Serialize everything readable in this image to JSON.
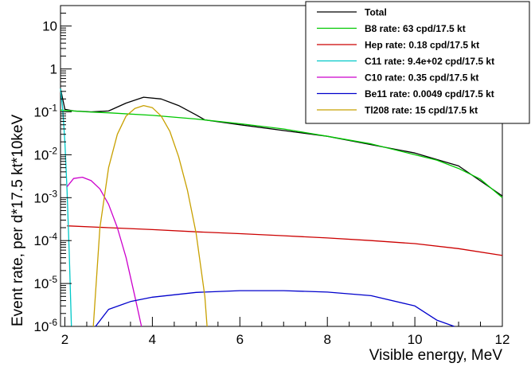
{
  "chart_data": {
    "type": "line",
    "title": "",
    "xlabel": "Visible energy, MeV",
    "ylabel": "Event rate, per d*17.5 kt*10keV",
    "xlim": [
      1.9,
      12
    ],
    "ylim": [
      1e-06,
      30
    ],
    "yscale": "log",
    "grid": false,
    "legend_position": "top-right",
    "x_ticks": [
      2,
      4,
      6,
      8,
      10,
      12
    ],
    "x_tick_labels": [
      "2",
      "4",
      "6",
      "8",
      "10",
      "12"
    ],
    "y_ticks": [
      1e-06,
      1e-05,
      0.0001,
      0.001,
      0.01,
      0.1,
      1,
      10
    ],
    "y_tick_labels": [
      {
        "base": "10",
        "exp": "-6"
      },
      {
        "base": "10",
        "exp": "-5"
      },
      {
        "base": "10",
        "exp": "-4"
      },
      {
        "base": "10",
        "exp": "-3"
      },
      {
        "base": "10",
        "exp": "-2"
      },
      {
        "base": "10",
        "exp": "-1"
      },
      {
        "base": "1",
        "exp": ""
      },
      {
        "base": "10",
        "exp": ""
      }
    ],
    "series": [
      {
        "name": "Total",
        "color": "#000000",
        "x": [
          1.9,
          2.0,
          2.2,
          2.6,
          3.0,
          3.4,
          3.8,
          4.2,
          4.6,
          5.0,
          5.2,
          6,
          8,
          10,
          11,
          12
        ],
        "y": [
          0.35,
          0.115,
          0.105,
          0.1,
          0.105,
          0.16,
          0.22,
          0.2,
          0.14,
          0.085,
          0.065,
          0.05,
          0.027,
          0.011,
          0.0055,
          0.0011
        ]
      },
      {
        "name": "B8 rate: 63 cpd/17.5 kt",
        "color": "#00c800",
        "x": [
          1.9,
          2.5,
          3,
          4,
          5,
          6,
          7,
          8,
          9,
          10,
          10.5,
          11,
          11.5,
          12
        ],
        "y": [
          0.11,
          0.1,
          0.095,
          0.083,
          0.068,
          0.053,
          0.04,
          0.027,
          0.018,
          0.01,
          0.0075,
          0.0048,
          0.0027,
          0.001
        ]
      },
      {
        "name": "Hep rate: 0.18 cpd/17.5 kt",
        "color": "#cc0000",
        "x": [
          2.05,
          3,
          4,
          5,
          6,
          7,
          8,
          9,
          10,
          11,
          12
        ],
        "y": [
          0.00022,
          0.0002,
          0.00018,
          0.00016,
          0.000145,
          0.00013,
          0.000115,
          0.0001,
          8.5e-05,
          6.5e-05,
          4.5e-05
        ]
      },
      {
        "name": "C11 rate: 9.4e+02 cpd/17.5 kt",
        "color": "#00c8c8",
        "x": [
          1.9,
          1.95,
          2.0,
          2.05,
          2.1,
          2.15
        ],
        "y": [
          0.35,
          0.12,
          0.02,
          0.0015,
          5e-05,
          1e-06
        ]
      },
      {
        "name": "C10 rate: 0.35 cpd/17.5 kt",
        "color": "#cc00cc",
        "x": [
          2.05,
          2.2,
          2.4,
          2.6,
          2.8,
          3.0,
          3.2,
          3.4,
          3.6,
          3.75
        ],
        "y": [
          0.0018,
          0.0028,
          0.003,
          0.0025,
          0.0016,
          0.0007,
          0.0002,
          4e-05,
          5e-06,
          1e-06
        ]
      },
      {
        "name": "Be11 rate: 0.0049 cpd/17.5 kt",
        "color": "#0000cc",
        "x": [
          2.7,
          3,
          3.5,
          4,
          5,
          6,
          7,
          8,
          9,
          10,
          10.5,
          10.9
        ],
        "y": [
          1e-06,
          2.5e-06,
          3.8e-06,
          4.8e-06,
          6.2e-06,
          6.8e-06,
          6.8e-06,
          6.3e-06,
          5.2e-06,
          3e-06,
          1.4e-06,
          1e-06
        ]
      },
      {
        "name": "Tl208 rate: 15 cpd/17.5 kt",
        "color": "#c8a000",
        "x": [
          2.65,
          2.8,
          3.0,
          3.2,
          3.4,
          3.6,
          3.8,
          4.0,
          4.2,
          4.4,
          4.6,
          4.8,
          5.0,
          5.2,
          5.25
        ],
        "y": [
          1e-06,
          0.0002,
          0.005,
          0.03,
          0.08,
          0.12,
          0.14,
          0.125,
          0.08,
          0.035,
          0.009,
          0.0015,
          0.00015,
          5e-06,
          1e-06
        ]
      }
    ]
  }
}
